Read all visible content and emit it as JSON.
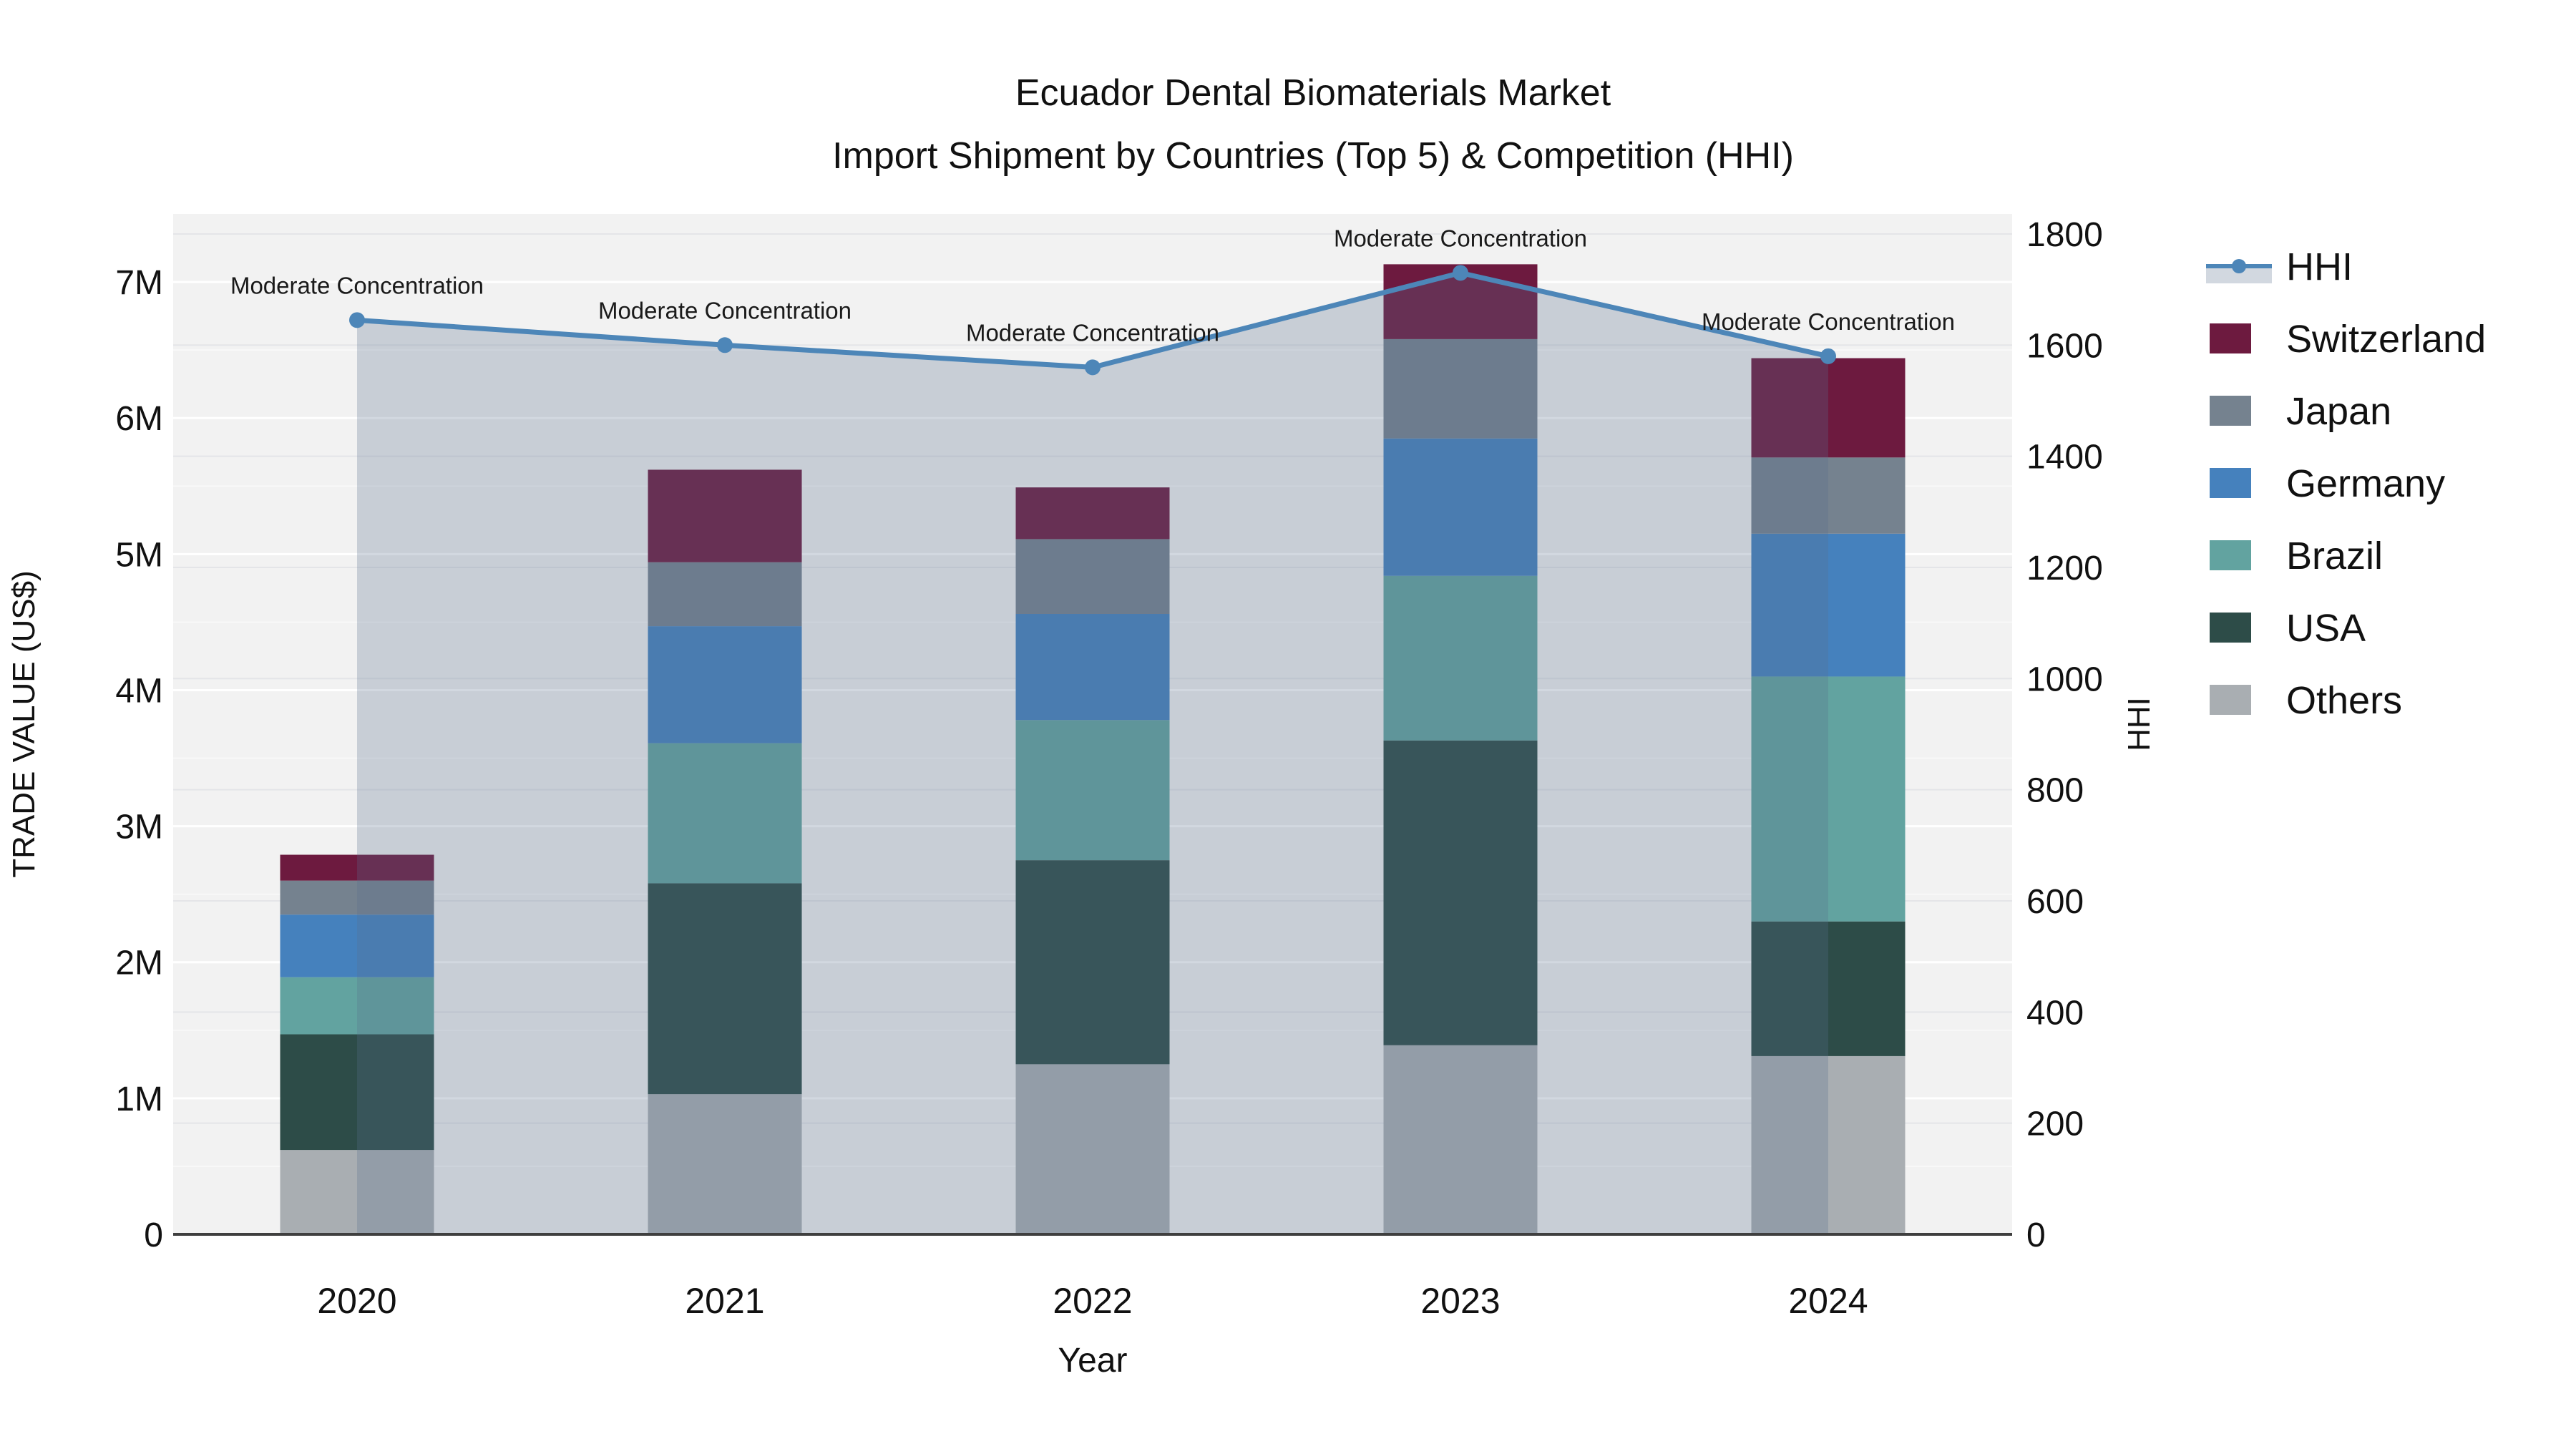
{
  "title": {
    "line1": "Ecuador Dental Biomaterials Market",
    "line2": "Import Shipment by Countries (Top 5) & Competition (HHI)"
  },
  "axes": {
    "left": {
      "title": "TRADE VALUE (US$)",
      "tick_labels": [
        "0",
        "1M",
        "2M",
        "3M",
        "4M",
        "5M",
        "6M",
        "7M"
      ],
      "tick_values": [
        0,
        1000000,
        2000000,
        3000000,
        4000000,
        5000000,
        6000000,
        7000000
      ]
    },
    "right": {
      "title": "HHI",
      "tick_labels": [
        "0",
        "200",
        "400",
        "600",
        "800",
        "1000",
        "1200",
        "1400",
        "1600",
        "1800"
      ],
      "tick_values": [
        0,
        200,
        400,
        600,
        800,
        1000,
        1200,
        1400,
        1600,
        1800
      ]
    },
    "x": {
      "title": "Year",
      "tick_labels": [
        "2020",
        "2021",
        "2022",
        "2023",
        "2024"
      ]
    }
  },
  "legend": {
    "items": [
      {
        "label": "HHI",
        "type": "line",
        "color": "#4D86B8"
      },
      {
        "label": "Switzerland",
        "type": "box",
        "color": "#6D1A3F"
      },
      {
        "label": "Japan",
        "type": "box",
        "color": "#75828F"
      },
      {
        "label": "Germany",
        "type": "box",
        "color": "#4581BD"
      },
      {
        "label": "Brazil",
        "type": "box",
        "color": "#62A3A0"
      },
      {
        "label": "USA",
        "type": "box",
        "color": "#2D4C48"
      },
      {
        "label": "Others",
        "type": "box",
        "color": "#A9AEB2"
      }
    ]
  },
  "colors": {
    "plot_background": "#f2f2f2",
    "grid_major": "#ffffff",
    "grid_minor": "#fafafa",
    "grid_right": "#e4e5e8",
    "baseline": "#3f3f3f",
    "hhi_line": "#4D86B8",
    "hhi_fill": "rgba(90,110,140,0.27)"
  },
  "chart_data": {
    "type": "bar",
    "subtype": "stacked-bar-with-line",
    "title": "Ecuador Dental Biomaterials Market — Import Shipment by Countries (Top 5) & Competition (HHI)",
    "categories": [
      "2020",
      "2021",
      "2022",
      "2023",
      "2024"
    ],
    "stack_order_bottom_to_top": [
      "Others",
      "USA",
      "Brazil",
      "Germany",
      "Japan",
      "Switzerland"
    ],
    "series": [
      {
        "name": "Others",
        "color": "#A9AEB2",
        "values": [
          620000,
          1030000,
          1250000,
          1390000,
          1310000
        ]
      },
      {
        "name": "USA",
        "color": "#2D4C48",
        "values": [
          850000,
          1550000,
          1500000,
          2240000,
          990000
        ]
      },
      {
        "name": "Brazil",
        "color": "#62A3A0",
        "values": [
          420000,
          1030000,
          1030000,
          1210000,
          1800000
        ]
      },
      {
        "name": "Germany",
        "color": "#4581BD",
        "values": [
          460000,
          860000,
          780000,
          1010000,
          1050000
        ]
      },
      {
        "name": "Japan",
        "color": "#75828F",
        "values": [
          250000,
          470000,
          550000,
          730000,
          560000
        ]
      },
      {
        "name": "Switzerland",
        "color": "#6D1A3F",
        "values": [
          190000,
          680000,
          380000,
          550000,
          730000
        ]
      }
    ],
    "bar_totals": [
      2790000,
      5620000,
      5490000,
      7130000,
      6440000
    ],
    "line_series": {
      "name": "HHI",
      "color": "#4D86B8",
      "values": [
        1645,
        1600,
        1560,
        1730,
        1580
      ],
      "area_fill": true
    },
    "point_annotations": [
      "Moderate Concentration",
      "Moderate Concentration",
      "Moderate Concentration",
      "Moderate Concentration",
      "Moderate Concentration"
    ],
    "xlabel": "Year",
    "ylabel": "TRADE VALUE (US$)",
    "y2label": "HHI",
    "ylim": [
      0,
      7500000
    ],
    "y2lim": [
      0,
      1836
    ],
    "grid": true,
    "legend_position": "right"
  }
}
